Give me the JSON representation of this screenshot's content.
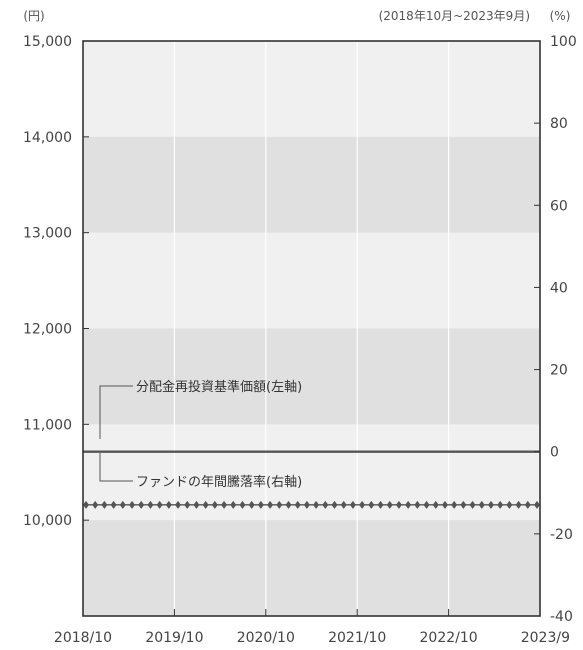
{
  "chart_data": {
    "type": "line",
    "period_label": "(2018年10月~2023年9月)",
    "left_unit": "(円)",
    "right_unit": "(%)",
    "x_tick_labels": [
      "2018/10",
      "2019/10",
      "2020/10",
      "2021/10",
      "2022/10",
      "2023/9"
    ],
    "y_left": {
      "min": 9000,
      "max": 15000,
      "ticks": [
        10000,
        11000,
        12000,
        13000,
        14000,
        15000
      ],
      "tick_labels": [
        "10,000",
        "11,000",
        "12,000",
        "13,000",
        "14,000",
        "15,000"
      ]
    },
    "y_right": {
      "min": -40,
      "max": 100,
      "ticks": [
        -40,
        -20,
        0,
        20,
        40,
        60,
        80,
        100
      ],
      "tick_labels": [
        "-40",
        "-20",
        "0",
        "20",
        "40",
        "60",
        "80",
        "100"
      ]
    },
    "bands_left_axis": [
      [
        9000,
        10000
      ],
      [
        11000,
        12000
      ],
      [
        13000,
        14000
      ]
    ],
    "band_color": "#e0e0e0",
    "background_color": "#f0f0f0",
    "series": [
      {
        "name": "分配金再投資基準価額(左軸)",
        "axis": "left",
        "value": 10160,
        "points": 50,
        "color": "#555555",
        "marker": "diamond"
      },
      {
        "name": "ファンドの年間騰落率(右軸)",
        "axis": "right",
        "value": 0,
        "color": "#555555"
      }
    ]
  }
}
